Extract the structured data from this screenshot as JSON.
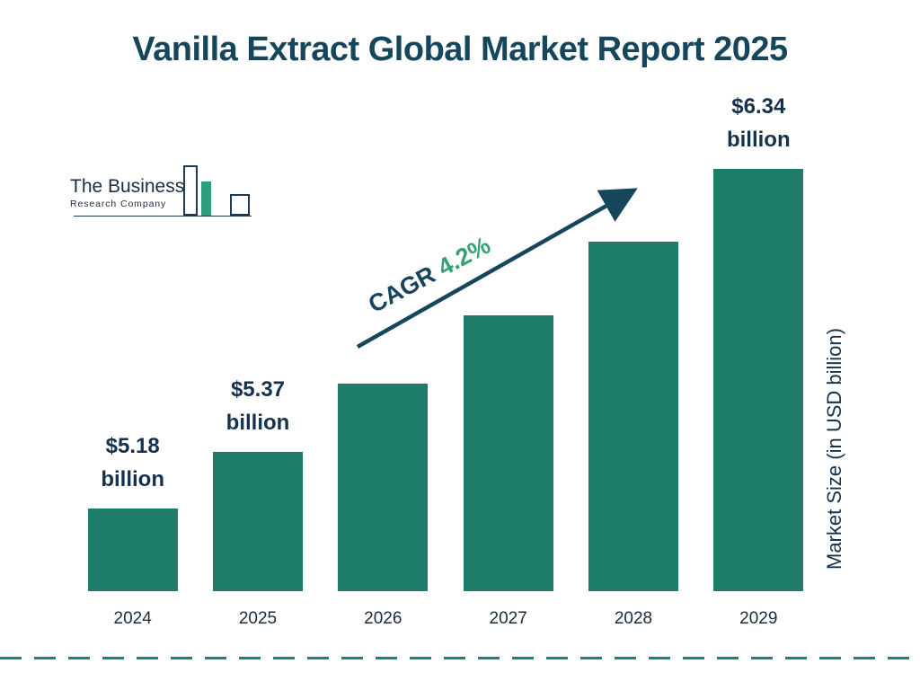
{
  "title": "Vanilla Extract Global Market Report 2025",
  "logo": {
    "line1": "The Business",
    "line2": "Research Company"
  },
  "cagr": {
    "label": "CAGR",
    "value": "4.2%"
  },
  "ylabel": "Market Size (in USD billion)",
  "colors": {
    "bar": "#1e7c6a",
    "title": "#15465c",
    "value_label": "#14324e",
    "cagr_value": "#35a273",
    "arrow": "#15465c",
    "dashed_line": "#1f8473"
  },
  "chart_data": {
    "type": "bar",
    "title": "Vanilla Extract Global Market Report 2025",
    "categories": [
      "2024",
      "2025",
      "2026",
      "2027",
      "2028",
      "2029"
    ],
    "values": [
      5.18,
      5.37,
      5.6,
      5.83,
      6.08,
      6.34
    ],
    "bar_labels": [
      "$5.18 billion",
      "$5.37 billion",
      "",
      "",
      "",
      "$6.34 billion"
    ],
    "xlabel": "",
    "ylabel": "Market Size (in USD billion)",
    "ylim": [
      4.9,
      6.5
    ],
    "cagr": "4.2%",
    "grid": false,
    "legend": "none",
    "bar_color": "#1e7c6a"
  }
}
